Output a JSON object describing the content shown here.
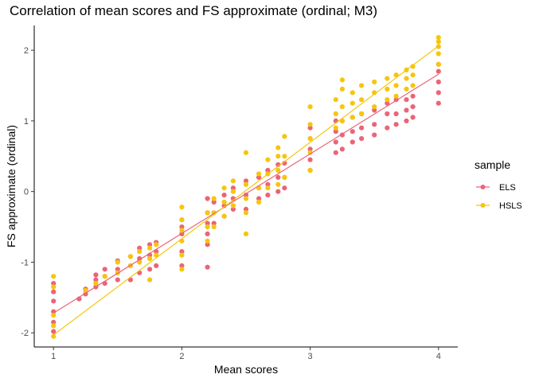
{
  "chart_data": {
    "type": "scatter",
    "title": "Correlation of mean scores and FS approximate (ordinal; M3)",
    "xlabel": "Mean scores",
    "ylabel": "FS approximate (ordinal)",
    "xlim": [
      0.85,
      4.15
    ],
    "ylim": [
      -2.2,
      2.35
    ],
    "xticks": [
      1,
      2,
      3,
      4
    ],
    "yticks": [
      -2,
      -1,
      0,
      1,
      2
    ],
    "grid": false,
    "legend": {
      "title": "sample",
      "position": "right"
    },
    "series": [
      {
        "name": "ELS",
        "color": "#EB6478",
        "fit_line": [
          [
            1.0,
            -1.72
          ],
          [
            4.0,
            1.66
          ]
        ],
        "points": [
          [
            1.0,
            -1.98
          ],
          [
            1.0,
            -1.85
          ],
          [
            1.0,
            -1.7
          ],
          [
            1.0,
            -1.55
          ],
          [
            1.0,
            -1.42
          ],
          [
            1.0,
            -1.3
          ],
          [
            1.2,
            -1.52
          ],
          [
            1.25,
            -1.45
          ],
          [
            1.25,
            -1.38
          ],
          [
            1.33,
            -1.35
          ],
          [
            1.33,
            -1.25
          ],
          [
            1.33,
            -1.18
          ],
          [
            1.4,
            -1.3
          ],
          [
            1.4,
            -1.2
          ],
          [
            1.4,
            -1.1
          ],
          [
            1.5,
            -1.25
          ],
          [
            1.5,
            -1.1
          ],
          [
            1.5,
            -0.98
          ],
          [
            1.6,
            -1.25
          ],
          [
            1.6,
            -1.05
          ],
          [
            1.6,
            -0.92
          ],
          [
            1.67,
            -1.15
          ],
          [
            1.67,
            -0.95
          ],
          [
            1.67,
            -0.8
          ],
          [
            1.75,
            -1.1
          ],
          [
            1.75,
            -0.9
          ],
          [
            1.75,
            -0.75
          ],
          [
            1.8,
            -1.05
          ],
          [
            1.8,
            -0.85
          ],
          [
            1.8,
            -0.72
          ],
          [
            2.0,
            -1.05
          ],
          [
            2.0,
            -0.85
          ],
          [
            2.0,
            -0.6
          ],
          [
            2.0,
            -0.5
          ],
          [
            2.0,
            -0.4
          ],
          [
            2.2,
            -1.07
          ],
          [
            2.2,
            -0.75
          ],
          [
            2.2,
            -0.6
          ],
          [
            2.2,
            -0.45
          ],
          [
            2.2,
            -0.3
          ],
          [
            2.2,
            -0.1
          ],
          [
            2.25,
            -0.45
          ],
          [
            2.25,
            -0.3
          ],
          [
            2.25,
            -0.15
          ],
          [
            2.33,
            -0.35
          ],
          [
            2.33,
            -0.2
          ],
          [
            2.33,
            -0.05
          ],
          [
            2.4,
            -0.25
          ],
          [
            2.4,
            -0.1
          ],
          [
            2.4,
            0.05
          ],
          [
            2.5,
            -0.25
          ],
          [
            2.5,
            -0.05
          ],
          [
            2.5,
            0.15
          ],
          [
            2.6,
            -0.1
          ],
          [
            2.6,
            0.05
          ],
          [
            2.6,
            0.2
          ],
          [
            2.67,
            -0.05
          ],
          [
            2.67,
            0.1
          ],
          [
            2.67,
            0.3
          ],
          [
            2.75,
            0.0
          ],
          [
            2.75,
            0.2
          ],
          [
            2.75,
            0.38
          ],
          [
            2.8,
            0.05
          ],
          [
            2.8,
            0.2
          ],
          [
            2.8,
            0.4
          ],
          [
            3.0,
            0.3
          ],
          [
            3.0,
            0.45
          ],
          [
            3.0,
            0.6
          ],
          [
            3.0,
            0.75
          ],
          [
            3.0,
            0.9
          ],
          [
            3.2,
            0.55
          ],
          [
            3.2,
            0.7
          ],
          [
            3.2,
            0.85
          ],
          [
            3.2,
            1.0
          ],
          [
            3.25,
            0.6
          ],
          [
            3.25,
            0.8
          ],
          [
            3.25,
            1.0
          ],
          [
            3.33,
            0.7
          ],
          [
            3.33,
            0.85
          ],
          [
            3.33,
            1.05
          ],
          [
            3.4,
            0.75
          ],
          [
            3.4,
            0.9
          ],
          [
            3.4,
            1.1
          ],
          [
            3.5,
            0.8
          ],
          [
            3.5,
            0.95
          ],
          [
            3.5,
            1.15
          ],
          [
            3.6,
            0.9
          ],
          [
            3.6,
            1.1
          ],
          [
            3.6,
            1.25
          ],
          [
            3.67,
            0.95
          ],
          [
            3.67,
            1.1
          ],
          [
            3.67,
            1.3
          ],
          [
            3.75,
            1.0
          ],
          [
            3.75,
            1.15
          ],
          [
            3.75,
            1.3
          ],
          [
            3.8,
            1.05
          ],
          [
            3.8,
            1.2
          ],
          [
            3.8,
            1.35
          ],
          [
            4.0,
            1.25
          ],
          [
            4.0,
            1.4
          ],
          [
            4.0,
            1.55
          ],
          [
            4.0,
            1.7
          ],
          [
            4.0,
            1.8
          ]
        ]
      },
      {
        "name": "HSLS",
        "color": "#F5C60F",
        "fit_line": [
          [
            1.0,
            -2.03
          ],
          [
            4.0,
            2.06
          ]
        ],
        "points": [
          [
            1.0,
            -2.05
          ],
          [
            1.0,
            -1.9
          ],
          [
            1.0,
            -1.75
          ],
          [
            1.0,
            -1.35
          ],
          [
            1.0,
            -1.2
          ],
          [
            1.25,
            -1.4
          ],
          [
            1.33,
            -1.3
          ],
          [
            1.4,
            -1.2
          ],
          [
            1.5,
            -1.15
          ],
          [
            1.5,
            -1.0
          ],
          [
            1.6,
            -1.05
          ],
          [
            1.6,
            -0.92
          ],
          [
            1.67,
            -1.0
          ],
          [
            1.67,
            -0.85
          ],
          [
            1.75,
            -1.25
          ],
          [
            1.75,
            -0.95
          ],
          [
            1.75,
            -0.8
          ],
          [
            1.8,
            -0.9
          ],
          [
            1.8,
            -0.75
          ],
          [
            2.0,
            -1.1
          ],
          [
            2.0,
            -0.9
          ],
          [
            2.0,
            -0.7
          ],
          [
            2.0,
            -0.55
          ],
          [
            2.0,
            -0.4
          ],
          [
            2.0,
            -0.22
          ],
          [
            2.2,
            -0.7
          ],
          [
            2.2,
            -0.5
          ],
          [
            2.2,
            -0.3
          ],
          [
            2.25,
            -0.5
          ],
          [
            2.25,
            -0.3
          ],
          [
            2.25,
            -0.1
          ],
          [
            2.33,
            -0.35
          ],
          [
            2.33,
            -0.15
          ],
          [
            2.33,
            0.05
          ],
          [
            2.4,
            -0.2
          ],
          [
            2.4,
            0.0
          ],
          [
            2.4,
            0.15
          ],
          [
            2.5,
            -0.6
          ],
          [
            2.5,
            -0.3
          ],
          [
            2.5,
            -0.1
          ],
          [
            2.5,
            0.1
          ],
          [
            2.5,
            0.55
          ],
          [
            2.6,
            -0.15
          ],
          [
            2.6,
            0.05
          ],
          [
            2.6,
            0.25
          ],
          [
            2.67,
            0.05
          ],
          [
            2.67,
            0.25
          ],
          [
            2.67,
            0.45
          ],
          [
            2.75,
            0.1
          ],
          [
            2.75,
            0.3
          ],
          [
            2.75,
            0.5
          ],
          [
            2.75,
            0.62
          ],
          [
            2.8,
            0.2
          ],
          [
            2.8,
            0.5
          ],
          [
            2.8,
            0.78
          ],
          [
            3.0,
            0.3
          ],
          [
            3.0,
            0.55
          ],
          [
            3.0,
            0.75
          ],
          [
            3.0,
            0.95
          ],
          [
            3.0,
            1.2
          ],
          [
            3.2,
            0.9
          ],
          [
            3.2,
            1.1
          ],
          [
            3.2,
            1.3
          ],
          [
            3.25,
            1.0
          ],
          [
            3.25,
            1.2
          ],
          [
            3.25,
            1.45
          ],
          [
            3.25,
            1.58
          ],
          [
            3.33,
            1.05
          ],
          [
            3.33,
            1.25
          ],
          [
            3.33,
            1.4
          ],
          [
            3.4,
            1.1
          ],
          [
            3.4,
            1.3
          ],
          [
            3.4,
            1.5
          ],
          [
            3.5,
            1.2
          ],
          [
            3.5,
            1.4
          ],
          [
            3.5,
            1.55
          ],
          [
            3.6,
            1.3
          ],
          [
            3.6,
            1.45
          ],
          [
            3.6,
            1.6
          ],
          [
            3.67,
            1.35
          ],
          [
            3.67,
            1.5
          ],
          [
            3.67,
            1.65
          ],
          [
            3.75,
            1.45
          ],
          [
            3.75,
            1.6
          ],
          [
            3.75,
            1.72
          ],
          [
            3.8,
            1.5
          ],
          [
            3.8,
            1.65
          ],
          [
            3.8,
            1.77
          ],
          [
            4.0,
            1.8
          ],
          [
            4.0,
            1.95
          ],
          [
            4.0,
            2.05
          ],
          [
            4.0,
            2.12
          ],
          [
            4.0,
            2.18
          ]
        ]
      }
    ]
  }
}
